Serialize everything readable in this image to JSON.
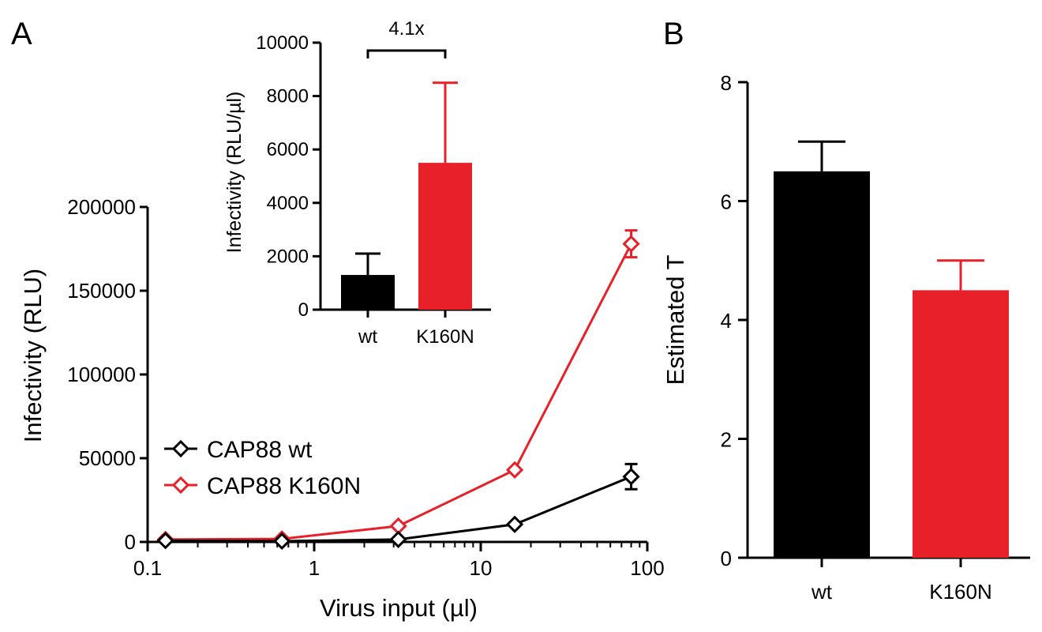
{
  "panels": {
    "a_label": "A",
    "b_label": "B"
  },
  "chart_data": [
    {
      "id": "A-main",
      "type": "line",
      "xlabel": "Virus input (µl)",
      "ylabel": "Infectivity (RLU)",
      "xscale": "log",
      "xlim": [
        0.1,
        100
      ],
      "ylim": [
        0,
        200000
      ],
      "xticks": [
        "0.1",
        "1",
        "10",
        "100"
      ],
      "yticks": [
        "0",
        "50000",
        "100000",
        "150000",
        "200000"
      ],
      "x": [
        0.128,
        0.64,
        3.2,
        16,
        80
      ],
      "grid": false,
      "legend_position": "center-left",
      "series": [
        {
          "name": "CAP88 wt",
          "color": "#000000",
          "marker": "open-diamond",
          "values": [
            800,
            500,
            1500,
            10500,
            39000
          ],
          "errors": [
            0,
            0,
            0,
            0,
            7500
          ]
        },
        {
          "name": "CAP88 K160N",
          "color": "#e8202a",
          "marker": "open-diamond",
          "values": [
            1500,
            1800,
            9500,
            43000,
            178000
          ],
          "errors": [
            0,
            0,
            0,
            0,
            8000
          ]
        }
      ]
    },
    {
      "id": "A-inset",
      "type": "bar",
      "categories": [
        "wt",
        "K160N"
      ],
      "values": [
        1300,
        5500
      ],
      "errors": [
        800,
        3000
      ],
      "colors": [
        "#000000",
        "#e8202a"
      ],
      "ylabel": "Infectivity (RLU/µl)",
      "ylim": [
        0,
        10000
      ],
      "yticks": [
        "0",
        "2000",
        "4000",
        "6000",
        "8000",
        "10000"
      ],
      "annotation": "4.1x"
    },
    {
      "id": "B",
      "type": "bar",
      "categories": [
        "wt",
        "K160N"
      ],
      "values": [
        6.5,
        4.5
      ],
      "errors": [
        0.5,
        0.5
      ],
      "colors": [
        "#000000",
        "#e8202a"
      ],
      "ylabel": "Estimated T",
      "ylim": [
        0,
        8
      ],
      "yticks": [
        "0",
        "2",
        "4",
        "6",
        "8"
      ]
    }
  ]
}
